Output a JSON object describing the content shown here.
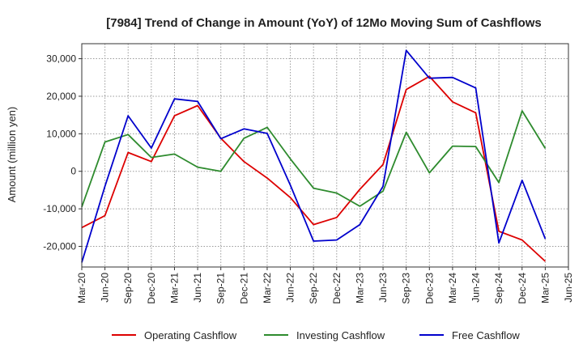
{
  "chart_data": {
    "type": "line",
    "title": "[7984]  Trend of Change in Amount (YoY) of 12Mo Moving Sum of Cashflows",
    "xlabel": "",
    "ylabel": "Amount (million yen)",
    "ylim": [
      -25500,
      34000
    ],
    "yticks": [
      -20000,
      -10000,
      0,
      10000,
      20000,
      30000
    ],
    "ytick_labels": [
      "-20,000",
      "-10,000",
      "0",
      "10,000",
      "20,000",
      "30,000"
    ],
    "categories": [
      "Mar-20",
      "Jun-20",
      "Sep-20",
      "Dec-20",
      "Mar-21",
      "Jun-21",
      "Sep-21",
      "Dec-21",
      "Mar-22",
      "Jun-22",
      "Sep-22",
      "Dec-22",
      "Mar-23",
      "Jun-23",
      "Sep-23",
      "Dec-23",
      "Mar-24",
      "Jun-24",
      "Sep-24",
      "Dec-24",
      "Mar-25",
      "Jun-25"
    ],
    "grid": true,
    "legend_position": "bottom",
    "series": [
      {
        "name": "Operating Cashflow",
        "color": "#dd0000",
        "values": [
          -15000,
          -11800,
          5000,
          2600,
          14800,
          17500,
          8800,
          2600,
          -1800,
          -7000,
          -14200,
          -12300,
          -4800,
          1800,
          21800,
          25300,
          18500,
          15600,
          -16000,
          -18300,
          -24000,
          null
        ]
      },
      {
        "name": "Investing Cashflow",
        "color": "#2e8b2e",
        "values": [
          -9500,
          7800,
          9800,
          3700,
          4600,
          1100,
          0,
          8800,
          11700,
          3300,
          -4500,
          -5800,
          -9300,
          -5300,
          10400,
          -400,
          6700,
          6600,
          -3000,
          16100,
          6100,
          null
        ]
      },
      {
        "name": "Free Cashflow",
        "color": "#0000cc",
        "values": [
          -24300,
          -4000,
          14800,
          6200,
          19300,
          18600,
          8700,
          11300,
          10100,
          -3700,
          -18600,
          -18300,
          -14200,
          -4000,
          32200,
          24800,
          25000,
          22200,
          -19100,
          -2400,
          -18000,
          null
        ]
      }
    ]
  }
}
